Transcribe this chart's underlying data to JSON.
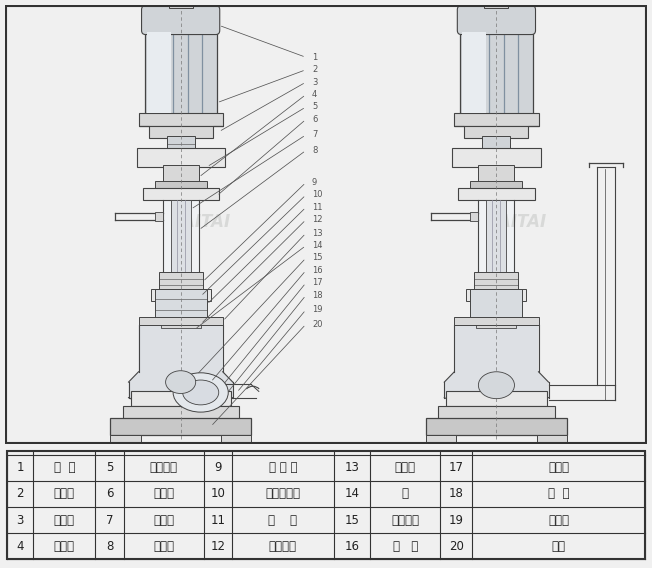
{
  "bg_color": "#f0f0f0",
  "drawing_bg": "#ffffff",
  "lc": "#444444",
  "fill_light": "#e8e8e8",
  "fill_mid": "#d8d8d8",
  "fill_dark": "#c8c8c8",
  "fill_motor": "#d0d4d8",
  "fill_shaft": "#dcdfe2",
  "ann_color": "#555555",
  "wm_color": "#c8cac8",
  "table_data": [
    [
      "1",
      "电  机",
      "5",
      "上轴承坐",
      "9",
      "下 轴 承",
      "13",
      "后盖板",
      "17",
      "密封环"
    ],
    [
      "2",
      "联轴器",
      "6",
      "安装盘",
      "10",
      "上机械密封",
      "14",
      "键",
      "18",
      "泵  体"
    ],
    [
      "3",
      "电机坐",
      "7",
      "加长轴",
      "11",
      "油    室",
      "15",
      "叶轮螺母",
      "19",
      "出水管"
    ],
    [
      "4",
      "上轴承",
      "8",
      "支撑管",
      "12",
      "机械密封",
      "16",
      "叶   轮",
      "20",
      "底盘"
    ]
  ]
}
